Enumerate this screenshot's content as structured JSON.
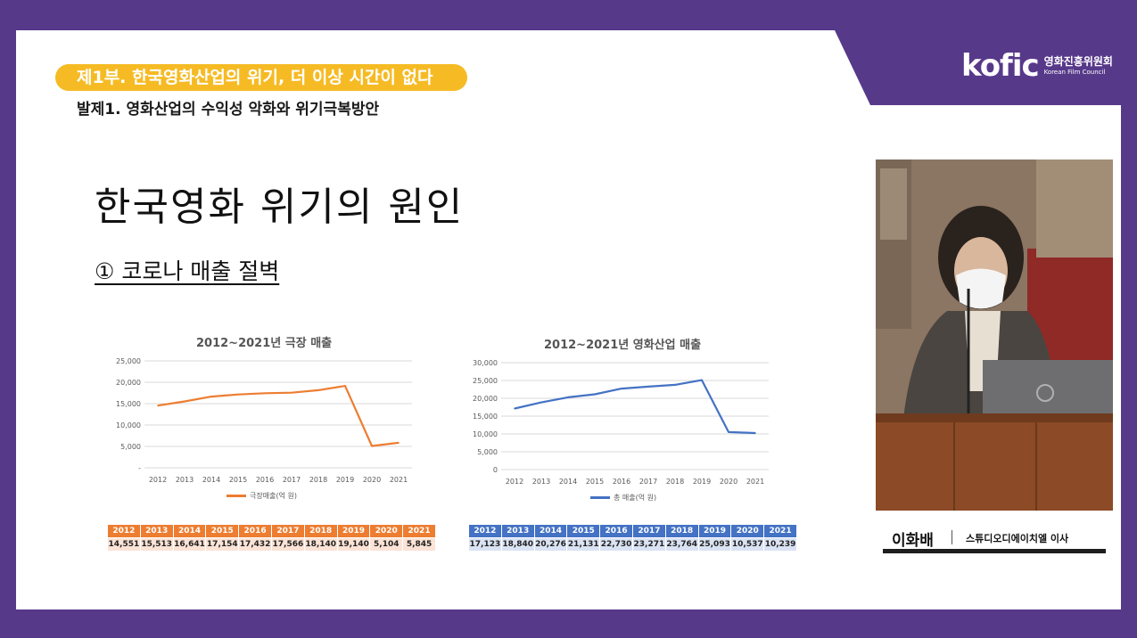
{
  "header": {
    "part_title": "제1부. 한국영화산업의 위기, 더 이상 시간이 없다",
    "presentation_title": "발제1. 영화산업의 수익성 악화와 위기극복방안",
    "logo_word": "kofic",
    "logo_korean": "영화진흥위원회",
    "logo_english": "Korean Film Council"
  },
  "slide": {
    "title": "한국영화 위기의 원인",
    "section": "① 코로나 매출 절벽"
  },
  "chart_data": [
    {
      "type": "line",
      "title": "2012~2021년 극장 매출",
      "x": [
        "2012",
        "2013",
        "2014",
        "2015",
        "2016",
        "2017",
        "2018",
        "2019",
        "2020",
        "2021"
      ],
      "series": [
        {
          "name": "극장매출(억 원)",
          "values": [
            14551,
            15513,
            16641,
            17154,
            17432,
            17566,
            18140,
            19140,
            5104,
            5845
          ]
        }
      ],
      "ylim": [
        0,
        25000
      ],
      "yticks": [
        "25,000",
        "20,000",
        "15,000",
        "10,000",
        "5,000",
        "-"
      ],
      "color": "#ed7d31",
      "grid": true,
      "legend": "bottom"
    },
    {
      "type": "line",
      "title": "2012~2021년 영화산업 매출",
      "x": [
        "2012",
        "2013",
        "2014",
        "2015",
        "2016",
        "2017",
        "2018",
        "2019",
        "2020",
        "2021"
      ],
      "series": [
        {
          "name": "총 매출(억 원)",
          "values": [
            17123,
            18840,
            20276,
            21131,
            22730,
            23271,
            23764,
            25093,
            10537,
            10239
          ]
        }
      ],
      "ylim": [
        0,
        30000
      ],
      "yticks": [
        "30,000",
        "25,000",
        "20,000",
        "15,000",
        "10,000",
        "5,000",
        "0"
      ],
      "color": "#4472c4",
      "grid": true,
      "legend": "bottom"
    }
  ],
  "tables": {
    "theater": {
      "years": [
        "2012",
        "2013",
        "2014",
        "2015",
        "2016",
        "2017",
        "2018",
        "2019",
        "2020",
        "2021"
      ],
      "values": [
        "14,551",
        "15,513",
        "16,641",
        "17,154",
        "17,432",
        "17,566",
        "18,140",
        "19,140",
        "5,104",
        "5,845"
      ]
    },
    "industry": {
      "years": [
        "2012",
        "2013",
        "2014",
        "2015",
        "2016",
        "2017",
        "2018",
        "2019",
        "2020",
        "2021"
      ],
      "values": [
        "17,123",
        "18,840",
        "20,276",
        "21,131",
        "22,730",
        "23,271",
        "23,764",
        "25,093",
        "10,537",
        "10,239"
      ]
    }
  },
  "speaker": {
    "name": "이화배",
    "role": "스튜디오디에이치엘 이사"
  },
  "colors": {
    "background": "#57398a",
    "accent_yellow": "#f6bb24",
    "theater_orange": "#ed7d31",
    "industry_blue": "#4472c4"
  }
}
